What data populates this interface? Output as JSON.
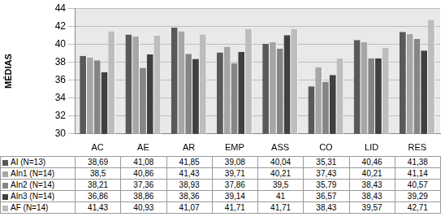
{
  "chart_data": {
    "type": "bar",
    "y_label": "MÉDIAS",
    "categories": [
      "AC",
      "AE",
      "AR",
      "EMP",
      "ASS",
      "CO",
      "LID",
      "RES"
    ],
    "series": [
      {
        "name": "AI (N=13)",
        "color": "#595959",
        "values": [
          38.69,
          41.08,
          41.85,
          39.08,
          40.04,
          35.31,
          40.46,
          41.38
        ],
        "value_labels": [
          "38,69",
          "41,08",
          "41,85",
          "39,08",
          "40,04",
          "35,31",
          "40,46",
          "41,38"
        ]
      },
      {
        "name": "AIn1 (N=14)",
        "color": "#a6a6a6",
        "values": [
          38.5,
          40.86,
          41.43,
          39.71,
          40.21,
          37.43,
          40.21,
          41.14
        ],
        "value_labels": [
          "38,5",
          "40,86",
          "41,43",
          "39,71",
          "40,21",
          "37,43",
          "40,21",
          "41,14"
        ]
      },
      {
        "name": "AIn2 (N=14)",
        "color": "#858585",
        "values": [
          38.21,
          37.36,
          38.93,
          37.86,
          39.5,
          35.79,
          38.43,
          40.57
        ],
        "value_labels": [
          "38,21",
          "37,36",
          "38,93",
          "37,86",
          "39,5",
          "35,79",
          "38,43",
          "40,57"
        ]
      },
      {
        "name": "AIn3 (N=14)",
        "color": "#404040",
        "values": [
          36.86,
          38.86,
          38.36,
          39.14,
          41,
          36.57,
          38.43,
          39.29
        ],
        "value_labels": [
          "36,86",
          "38,86",
          "38,36",
          "39,14",
          "41",
          "36,57",
          "38,43",
          "39,29"
        ]
      },
      {
        "name": "AF (N=14)",
        "color": "#bdbdbd",
        "values": [
          41.43,
          40.93,
          41.07,
          41.71,
          41.71,
          38.43,
          39.57,
          42.71
        ],
        "value_labels": [
          "41,43",
          "40,93",
          "41,07",
          "41,71",
          "41,71",
          "38,43",
          "39,57",
          "42,71"
        ]
      }
    ],
    "ylim": [
      30,
      44
    ],
    "yticks": [
      30,
      32,
      34,
      36,
      38,
      40,
      42,
      44
    ],
    "grid": true
  }
}
